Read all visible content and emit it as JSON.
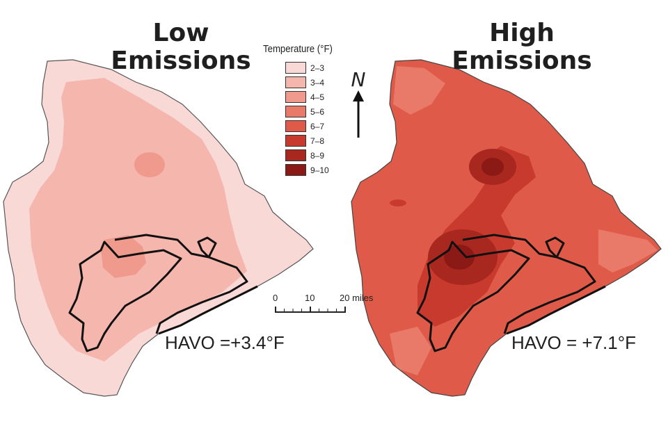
{
  "maps": {
    "low": {
      "title_line1": "Low",
      "title_line2": "Emissions",
      "havo_label": "HAVO =+3.4°F",
      "havo_change_f": 3.4
    },
    "high": {
      "title_line1": "High",
      "title_line2": "Emissions",
      "havo_label": "HAVO = +7.1°F",
      "havo_change_f": 7.1
    }
  },
  "legend": {
    "title": "Temperature (°F)",
    "items": [
      {
        "label": "2–3",
        "color": "#f9d9d6"
      },
      {
        "label": "3–4",
        "color": "#f4b6ad"
      },
      {
        "label": "4–5",
        "color": "#ef9a8c"
      },
      {
        "label": "5–6",
        "color": "#e97a69"
      },
      {
        "label": "6–7",
        "color": "#df5a48"
      },
      {
        "label": "7–8",
        "color": "#c93a2e"
      },
      {
        "label": "8–9",
        "color": "#a8271f"
      },
      {
        "label": "9–10",
        "color": "#8b1a17"
      }
    ]
  },
  "north_arrow": {
    "letter": "N"
  },
  "scale_bar": {
    "ticks": [
      "0",
      "10",
      "20 miles"
    ]
  }
}
